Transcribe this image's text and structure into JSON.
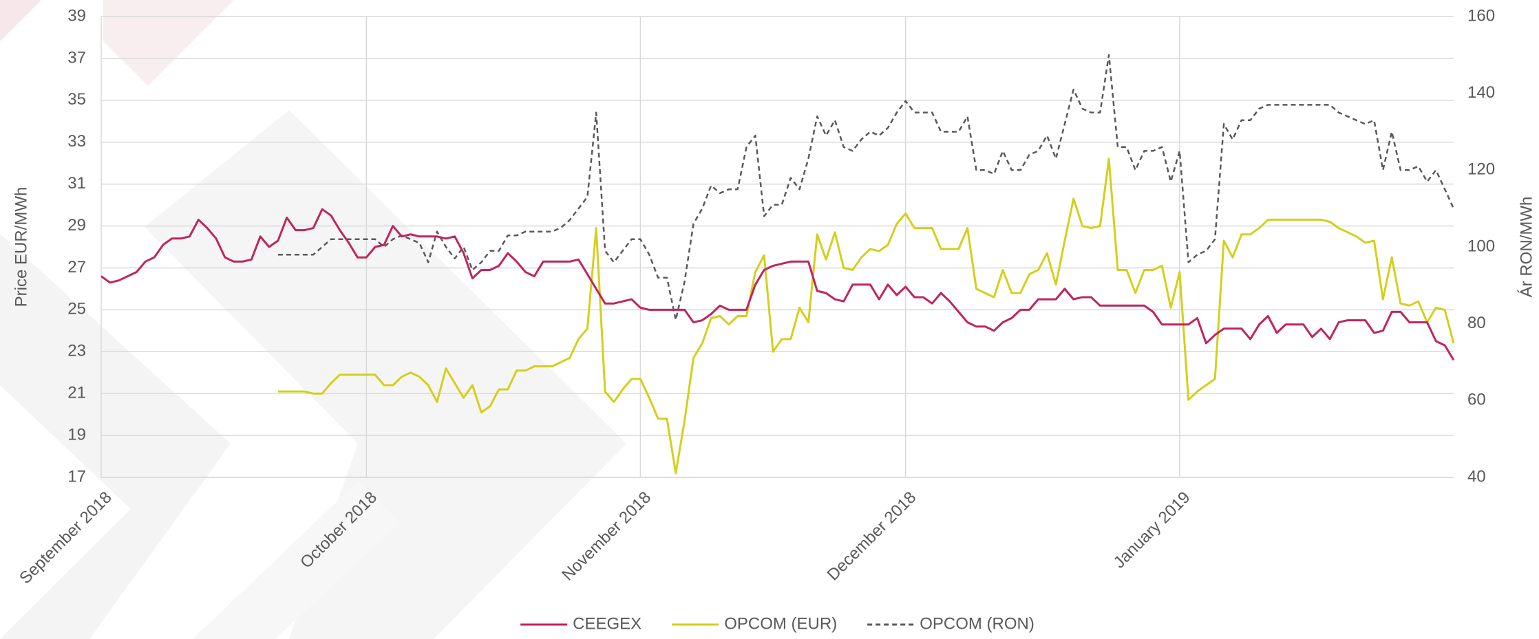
{
  "chart_data": {
    "type": "line",
    "y_label": "Price EUR/MWh",
    "y2_label": "Ár RON/MWh",
    "ylim": [
      17,
      39
    ],
    "yticks": [
      17,
      19,
      21,
      23,
      25,
      27,
      29,
      31,
      33,
      35,
      37,
      39
    ],
    "y2lim": [
      40,
      160
    ],
    "y2ticks": [
      40,
      60,
      80,
      100,
      120,
      140,
      160
    ],
    "grid": true,
    "legend": "bottom",
    "categories": [
      "September 2018",
      null,
      null,
      null,
      null,
      null,
      null,
      null,
      null,
      null,
      null,
      null,
      null,
      null,
      null,
      null,
      null,
      null,
      null,
      null,
      null,
      null,
      null,
      null,
      null,
      null,
      null,
      null,
      null,
      null,
      "October 2018",
      null,
      null,
      null,
      null,
      null,
      null,
      null,
      null,
      null,
      null,
      null,
      null,
      null,
      null,
      null,
      null,
      null,
      null,
      null,
      null,
      null,
      null,
      null,
      null,
      null,
      null,
      null,
      null,
      null,
      null,
      "November 2018",
      null,
      null,
      null,
      null,
      null,
      null,
      null,
      null,
      null,
      null,
      null,
      null,
      null,
      null,
      null,
      null,
      null,
      null,
      null,
      null,
      null,
      null,
      null,
      null,
      null,
      null,
      null,
      null,
      null,
      "December 2018",
      null,
      null,
      null,
      null,
      null,
      null,
      null,
      null,
      null,
      null,
      null,
      null,
      null,
      null,
      null,
      null,
      null,
      null,
      null,
      null,
      null,
      null,
      null,
      null,
      null,
      null,
      null,
      null,
      null,
      null,
      "January 2019",
      null,
      null,
      null,
      null,
      null,
      null,
      null,
      null,
      null,
      null,
      null,
      null,
      null,
      null,
      null,
      null,
      null,
      null,
      null,
      null,
      null,
      null,
      null,
      null,
      null,
      null,
      null,
      null,
      null,
      null,
      null
    ],
    "series": [
      {
        "name": "CEEGEX",
        "color": "#c0245f",
        "line_style": "solid",
        "axis": "y",
        "values": [
          26.6,
          26.3,
          26.4,
          26.6,
          26.8,
          27.3,
          27.5,
          28.1,
          28.4,
          28.4,
          28.5,
          29.3,
          28.9,
          28.4,
          27.5,
          27.3,
          27.3,
          27.4,
          28.5,
          28.0,
          28.3,
          29.4,
          28.8,
          28.8,
          28.9,
          29.8,
          29.5,
          28.8,
          28.2,
          27.5,
          27.5,
          28.0,
          28.1,
          29.0,
          28.5,
          28.6,
          28.5,
          28.5,
          28.5,
          28.4,
          28.5,
          27.7,
          26.5,
          26.9,
          26.9,
          27.1,
          27.7,
          27.3,
          26.8,
          26.6,
          27.3,
          27.3,
          27.3,
          27.3,
          27.4,
          26.7,
          26.0,
          25.3,
          25.3,
          25.4,
          25.5,
          25.1,
          25.0,
          25.0,
          25.0,
          25.0,
          25.0,
          24.4,
          24.5,
          24.8,
          25.2,
          25.0,
          25.0,
          25.0,
          26.2,
          26.9,
          27.1,
          27.2,
          27.3,
          27.3,
          27.3,
          25.9,
          25.8,
          25.5,
          25.4,
          26.2,
          26.2,
          26.2,
          25.5,
          26.2,
          25.7,
          26.1,
          25.6,
          25.6,
          25.3,
          25.8,
          25.4,
          24.9,
          24.4,
          24.2,
          24.2,
          24.0,
          24.4,
          24.6,
          25.0,
          25.0,
          25.5,
          25.5,
          25.5,
          26.0,
          25.5,
          25.6,
          25.6,
          25.2,
          25.2,
          25.2,
          25.2,
          25.2,
          25.2,
          24.9,
          24.3,
          24.3,
          24.3,
          24.3,
          24.6,
          23.4,
          23.8,
          24.1,
          24.1,
          24.1,
          23.6,
          24.3,
          24.7,
          23.9,
          24.3,
          24.3,
          24.3,
          23.7,
          24.1,
          23.6,
          24.4,
          24.5,
          24.5,
          24.5,
          23.9,
          24.0,
          24.9,
          24.9,
          24.4,
          24.4,
          24.4,
          23.5,
          23.3,
          22.6
        ]
      },
      {
        "name": "OPCOM (EUR)",
        "color": "#d4cf1c",
        "line_style": "solid",
        "axis": "y",
        "values": [
          null,
          null,
          null,
          null,
          null,
          null,
          null,
          null,
          null,
          null,
          null,
          null,
          null,
          null,
          null,
          null,
          null,
          null,
          null,
          null,
          21.1,
          21.1,
          21.1,
          21.1,
          21.0,
          21.0,
          21.5,
          21.9,
          21.9,
          21.9,
          21.9,
          21.9,
          21.4,
          21.4,
          21.8,
          22.0,
          21.8,
          21.4,
          20.6,
          22.2,
          21.5,
          20.8,
          21.4,
          20.1,
          20.4,
          21.2,
          21.2,
          22.1,
          22.1,
          22.3,
          22.3,
          22.3,
          22.5,
          22.7,
          23.6,
          24.1,
          28.9,
          21.1,
          20.6,
          21.2,
          21.7,
          21.7,
          20.8,
          19.8,
          19.8,
          17.2,
          19.7,
          22.7,
          23.4,
          24.6,
          24.7,
          24.3,
          24.7,
          24.7,
          26.8,
          27.6,
          23.0,
          23.6,
          23.6,
          25.1,
          24.4,
          28.6,
          27.4,
          28.7,
          27.0,
          26.9,
          27.5,
          27.9,
          27.8,
          28.1,
          29.1,
          29.6,
          28.9,
          28.9,
          28.9,
          27.9,
          27.9,
          27.9,
          28.9,
          26.0,
          25.8,
          25.6,
          26.9,
          25.8,
          25.8,
          26.7,
          26.9,
          27.7,
          26.2,
          28.3,
          30.3,
          29.0,
          28.9,
          29.0,
          32.2,
          26.9,
          26.9,
          25.8,
          26.9,
          26.9,
          27.1,
          25.1,
          26.8,
          20.7,
          21.1,
          21.4,
          21.7,
          28.3,
          27.5,
          28.6,
          28.6,
          28.9,
          29.3,
          29.3,
          29.3,
          29.3,
          29.3,
          29.3,
          29.3,
          29.2,
          28.9,
          28.7,
          28.5,
          28.2,
          28.3,
          25.5,
          27.5,
          25.3,
          25.2,
          25.4,
          24.4,
          25.1,
          25.0,
          23.4
        ]
      },
      {
        "name": "OPCOM (RON)",
        "color": "#595959",
        "line_style": "dashed",
        "axis": "y2",
        "values": [
          null,
          null,
          null,
          null,
          null,
          null,
          null,
          null,
          null,
          null,
          null,
          null,
          null,
          null,
          null,
          null,
          null,
          null,
          null,
          null,
          98,
          98,
          98,
          98,
          98,
          100,
          102,
          102,
          102,
          102,
          102,
          102,
          100,
          102,
          103,
          102,
          101,
          96,
          104,
          100,
          97,
          100,
          94,
          96,
          99,
          99,
          103,
          103,
          104,
          104,
          104,
          104,
          105,
          107,
          110,
          113,
          135,
          99,
          96,
          99,
          102,
          102,
          98,
          92,
          92,
          81,
          91,
          106,
          110,
          116,
          114,
          115,
          115,
          126,
          129,
          108,
          111,
          111,
          118,
          115,
          123,
          134,
          129,
          133,
          126,
          125,
          128,
          130,
          129,
          131,
          135,
          138,
          135,
          135,
          135,
          130,
          130,
          130,
          134,
          120,
          120,
          119,
          125,
          120,
          120,
          124,
          125,
          129,
          123,
          132,
          141,
          136,
          135,
          135,
          150,
          126,
          126,
          120,
          125,
          125,
          126,
          117,
          125,
          96,
          98,
          99,
          102,
          132,
          128,
          133,
          133,
          136,
          137,
          137,
          137,
          137,
          137,
          137,
          137,
          137,
          135,
          134,
          133,
          132,
          133,
          120,
          130,
          120,
          120,
          121,
          117,
          120,
          115,
          110
        ]
      }
    ]
  }
}
